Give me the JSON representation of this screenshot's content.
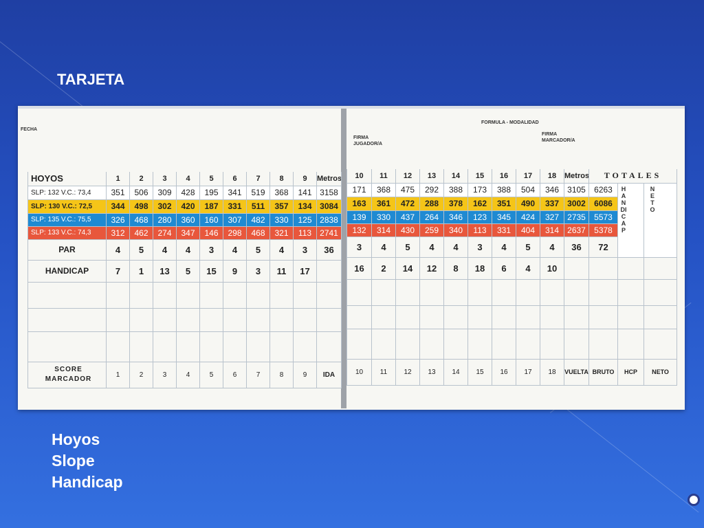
{
  "slide": {
    "title": "TARJETA",
    "bullets": [
      "Hoyos",
      "Slope",
      "Handicap"
    ]
  },
  "card": {
    "left": {
      "fecha_label": "FECHA",
      "header_label": "HOYOS",
      "holes": [
        "1",
        "2",
        "3",
        "4",
        "5",
        "6",
        "7",
        "8",
        "9"
      ],
      "metros_label": "Metros",
      "tee_rows": [
        {
          "label": "SLP: 132  V.C.: 73,4",
          "values": [
            "351",
            "506",
            "309",
            "428",
            "195",
            "341",
            "519",
            "368",
            "141"
          ],
          "total": "3158"
        },
        {
          "label": "SLP: 130  V.C.: 72,5",
          "values": [
            "344",
            "498",
            "302",
            "420",
            "187",
            "331",
            "511",
            "357",
            "134"
          ],
          "total": "3084"
        },
        {
          "label": "SLP: 135  V.C.: 75,5",
          "values": [
            "326",
            "468",
            "280",
            "360",
            "160",
            "307",
            "482",
            "330",
            "125"
          ],
          "total": "2838"
        },
        {
          "label": "SLP: 133  V.C.: 74,3",
          "values": [
            "312",
            "462",
            "274",
            "347",
            "146",
            "298",
            "468",
            "321",
            "113"
          ],
          "total": "2741"
        }
      ],
      "par_label": "PAR",
      "par": [
        "4",
        "5",
        "4",
        "4",
        "3",
        "4",
        "5",
        "4",
        "3"
      ],
      "par_total": "36",
      "handicap_label": "HANDICAP",
      "handicap": [
        "7",
        "1",
        "13",
        "5",
        "15",
        "9",
        "3",
        "11",
        "17"
      ],
      "score_label_1": "SCORE",
      "score_label_2": "MARCADOR",
      "score_numbers": [
        "1",
        "2",
        "3",
        "4",
        "5",
        "6",
        "7",
        "8",
        "9"
      ],
      "score_total_label": "IDA"
    },
    "right": {
      "formula_label": "FORMULA - MODALIDAD",
      "firma_jugador_1": "FIRMA",
      "firma_jugador_2": "JUGADOR/A",
      "firma_marcador_1": "FIRMA",
      "firma_marcador_2": "MARCADOR/A",
      "holes": [
        "10",
        "11",
        "12",
        "13",
        "14",
        "15",
        "16",
        "17",
        "18"
      ],
      "metros_label": "Metros",
      "totales_label": "TOTALES",
      "handicap_vertical": "HANDICAP",
      "neto_vertical": "NETO",
      "tee_rows": [
        {
          "values": [
            "171",
            "368",
            "475",
            "292",
            "388",
            "173",
            "388",
            "504",
            "346"
          ],
          "total": "3105",
          "grand": "6263"
        },
        {
          "values": [
            "163",
            "361",
            "472",
            "288",
            "378",
            "162",
            "351",
            "490",
            "337"
          ],
          "total": "3002",
          "grand": "6086"
        },
        {
          "values": [
            "139",
            "330",
            "437",
            "264",
            "346",
            "123",
            "345",
            "424",
            "327"
          ],
          "total": "2735",
          "grand": "5573"
        },
        {
          "values": [
            "132",
            "314",
            "430",
            "259",
            "340",
            "113",
            "331",
            "404",
            "314"
          ],
          "total": "2637",
          "grand": "5378"
        }
      ],
      "par": [
        "3",
        "4",
        "5",
        "4",
        "4",
        "3",
        "4",
        "5",
        "4"
      ],
      "par_total": "36",
      "par_grand": "72",
      "handicap": [
        "16",
        "2",
        "14",
        "12",
        "8",
        "18",
        "6",
        "4",
        "10"
      ],
      "score_numbers": [
        "10",
        "11",
        "12",
        "13",
        "14",
        "15",
        "16",
        "17",
        "18"
      ],
      "score_extra": [
        "VUELTA",
        "BRUTO",
        "HCP",
        "NETO"
      ]
    }
  }
}
